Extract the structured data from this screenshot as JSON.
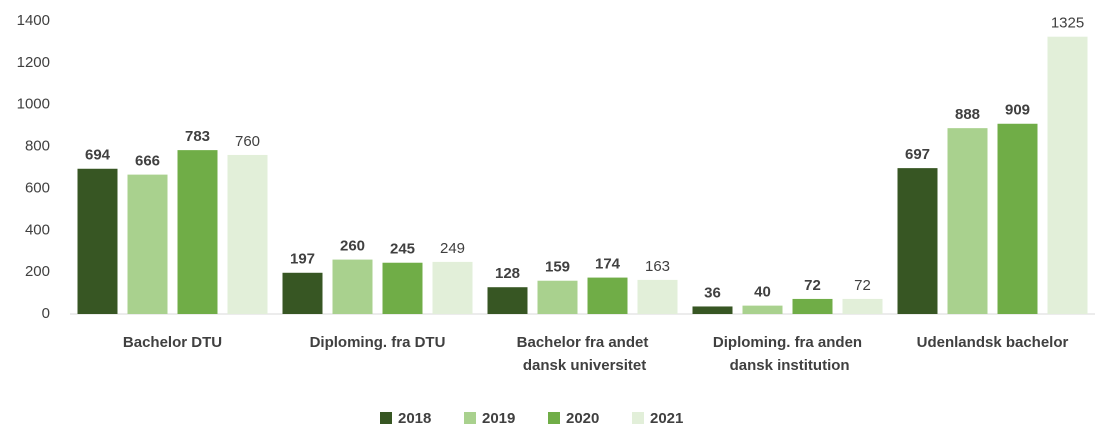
{
  "chart_data": {
    "type": "bar",
    "categories": [
      "Bachelor DTU",
      "Diploming. fra DTU",
      "Bachelor fra andet dansk universitet",
      "Diploming. fra anden dansk institution",
      "Udenlandsk bachelor"
    ],
    "series": [
      {
        "name": "2018",
        "color": "#375623",
        "bold": true,
        "values": [
          694,
          197,
          128,
          36,
          697
        ]
      },
      {
        "name": "2019",
        "color": "#a9d18e",
        "bold": true,
        "values": [
          666,
          260,
          159,
          40,
          888
        ]
      },
      {
        "name": "2020",
        "color": "#70ad47",
        "bold": true,
        "values": [
          783,
          245,
          174,
          72,
          909
        ]
      },
      {
        "name": "2021",
        "color": "#e2efd9",
        "bold": false,
        "values": [
          760,
          249,
          163,
          72,
          1325
        ]
      }
    ],
    "ylim": [
      0,
      1400
    ],
    "yticks": [
      0,
      200,
      400,
      600,
      800,
      1000,
      1200,
      1400
    ],
    "grid": false,
    "legend": "bottom"
  }
}
